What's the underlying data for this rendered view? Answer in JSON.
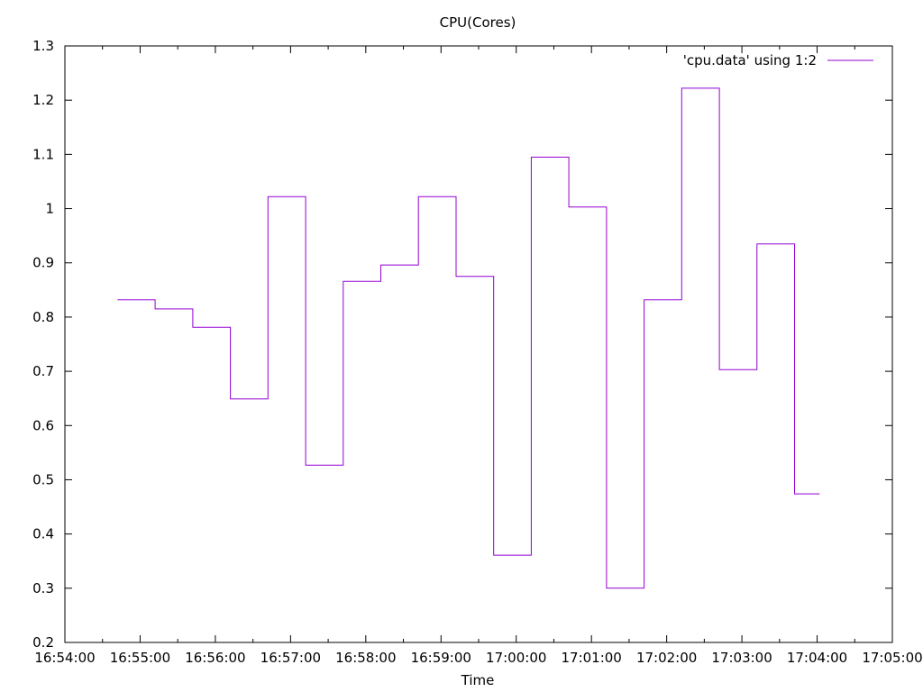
{
  "chart_data": {
    "type": "line",
    "step": true,
    "title": "CPU(Cores)",
    "xlabel": "Time",
    "ylabel": "",
    "xlim": [
      "16:54:00",
      "17:05:00"
    ],
    "ylim": [
      0.2,
      1.3
    ],
    "x_ticks": [
      "16:54:00",
      "16:55:00",
      "16:56:00",
      "16:57:00",
      "16:58:00",
      "16:59:00",
      "17:00:00",
      "17:01:00",
      "17:02:00",
      "17:03:00",
      "17:04:00",
      "17:05:00"
    ],
    "y_ticks": [
      "0.2",
      "0.3",
      "0.4",
      "0.5",
      "0.6",
      "0.7",
      "0.8",
      "0.9",
      "1",
      "1.1",
      "1.2",
      "1.3"
    ],
    "grid": false,
    "legend_position": "top-right",
    "series": [
      {
        "name": "'cpu.data' using 1:2",
        "color": "#9400d3",
        "x": [
          "16:54:42",
          "16:55:12",
          "16:55:42",
          "16:56:12",
          "16:56:42",
          "16:57:12",
          "16:57:42",
          "16:58:12",
          "16:58:42",
          "16:59:12",
          "16:59:42",
          "17:00:12",
          "17:00:42",
          "17:01:12",
          "17:01:42",
          "17:02:12",
          "17:02:42",
          "17:03:12",
          "17:03:42",
          "17:04:02"
        ],
        "y": [
          0.832,
          0.815,
          0.781,
          0.649,
          1.022,
          0.527,
          0.866,
          0.896,
          1.022,
          0.875,
          0.361,
          1.095,
          1.003,
          0.3,
          0.832,
          1.222,
          0.703,
          0.935,
          0.474,
          0.474
        ]
      }
    ]
  }
}
